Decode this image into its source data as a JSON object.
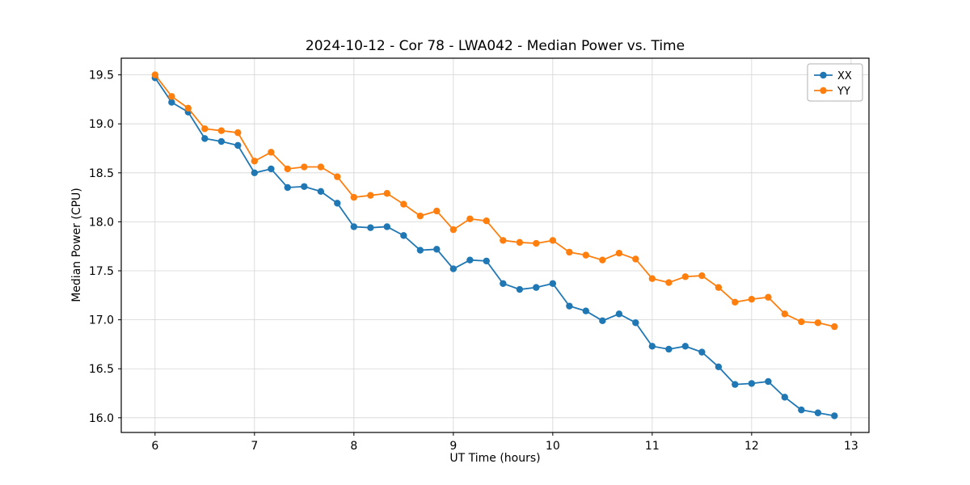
{
  "chart_data": {
    "type": "line",
    "title": "2024-10-12 - Cor 78 - LWA042 - Median Power vs. Time",
    "xlabel": "UT Time (hours)",
    "ylabel": "Median Power (CPU)",
    "xlim": [
      5.66,
      13.18
    ],
    "ylim": [
      15.85,
      19.67
    ],
    "xticks": [
      6,
      7,
      8,
      9,
      10,
      11,
      12,
      13
    ],
    "xtick_labels": [
      "6",
      "7",
      "8",
      "9",
      "10",
      "11",
      "12",
      "13"
    ],
    "yticks": [
      16.0,
      16.5,
      17.0,
      17.5,
      18.0,
      18.5,
      19.0,
      19.5
    ],
    "ytick_labels": [
      "16.0",
      "16.5",
      "17.0",
      "17.5",
      "18.0",
      "18.5",
      "19.0",
      "19.5"
    ],
    "grid": true,
    "legend_position": "upper right",
    "x": [
      6,
      6.167,
      6.333,
      6.5,
      6.667,
      6.833,
      7,
      7.167,
      7.333,
      7.5,
      7.667,
      7.833,
      8,
      8.167,
      8.333,
      8.5,
      8.667,
      8.833,
      9,
      9.167,
      9.333,
      9.5,
      9.667,
      9.833,
      10,
      10.167,
      10.333,
      10.5,
      10.667,
      10.833,
      11,
      11.167,
      11.333,
      11.5,
      11.667,
      11.833,
      12,
      12.167,
      12.333,
      12.5,
      12.667,
      12.833
    ],
    "series": [
      {
        "name": "XX",
        "color": "#1f77b4",
        "values": [
          19.47,
          19.22,
          19.12,
          18.85,
          18.82,
          18.78,
          18.5,
          18.54,
          18.35,
          18.36,
          18.31,
          18.19,
          17.95,
          17.94,
          17.95,
          17.86,
          17.71,
          17.72,
          17.52,
          17.61,
          17.6,
          17.37,
          17.31,
          17.33,
          17.37,
          17.14,
          17.09,
          16.99,
          17.06,
          16.97,
          16.73,
          16.7,
          16.73,
          16.67,
          16.52,
          16.34,
          16.35,
          16.37,
          16.21,
          16.08,
          16.05,
          16.02
        ]
      },
      {
        "name": "YY",
        "color": "#ff7f0e",
        "values": [
          19.5,
          19.28,
          19.16,
          18.95,
          18.93,
          18.91,
          18.62,
          18.71,
          18.54,
          18.56,
          18.56,
          18.46,
          18.25,
          18.27,
          18.29,
          18.18,
          18.06,
          18.11,
          17.92,
          18.03,
          18.01,
          17.81,
          17.79,
          17.78,
          17.81,
          17.69,
          17.66,
          17.61,
          17.68,
          17.62,
          17.42,
          17.38,
          17.44,
          17.45,
          17.33,
          17.18,
          17.21,
          17.23,
          17.06,
          16.98,
          16.97,
          16.93
        ]
      }
    ]
  }
}
